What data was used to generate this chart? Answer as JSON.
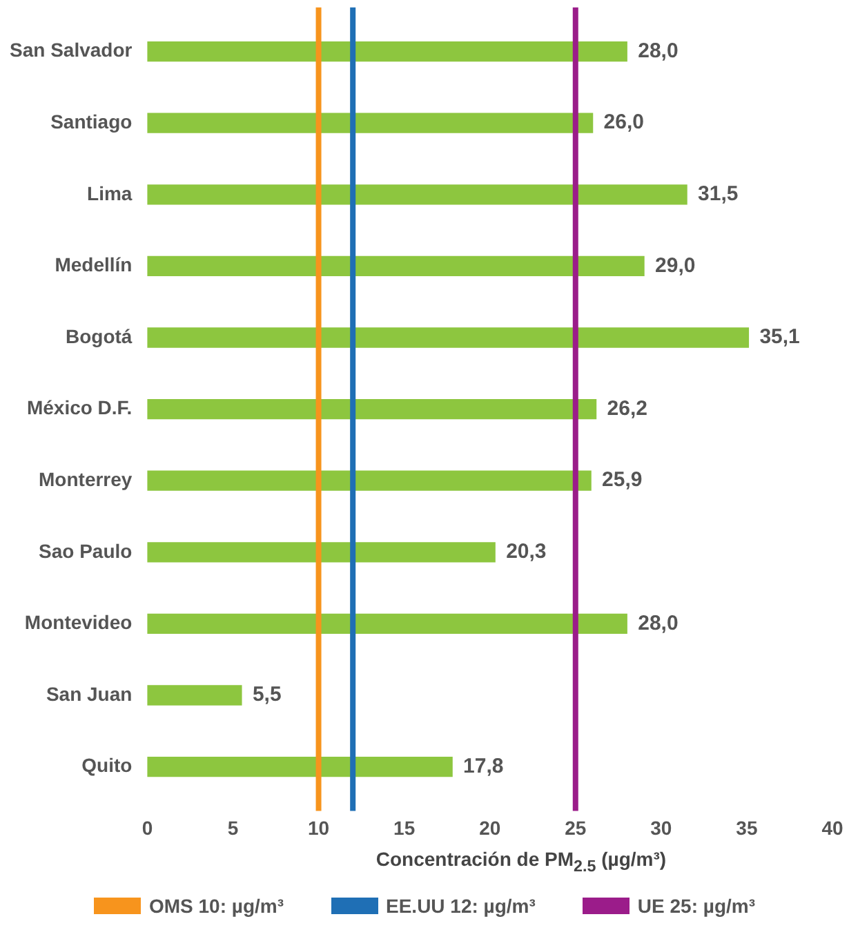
{
  "chart_data": {
    "type": "bar",
    "orientation": "horizontal",
    "xlabel": "Concentración de PM$_{2.5}$ (µg/m³)",
    "categories": [
      "San Salvador",
      "Santiago",
      "Lima",
      "Medellín",
      "Bogotá",
      "México D.F.",
      "Monterrey",
      "Sao Paulo",
      "Montevideo",
      "San Juan",
      "Quito"
    ],
    "values": [
      28.0,
      26.0,
      31.5,
      29.0,
      35.1,
      26.2,
      25.9,
      20.3,
      28.0,
      5.5,
      17.8
    ],
    "value_labels": [
      "28,0",
      "26,0",
      "31,5",
      "29,0",
      "35,1",
      "26,2",
      "25,9",
      "20,3",
      "28,0",
      "5,5",
      "17,8"
    ],
    "color": "#8dc63f",
    "xlim": [
      0,
      40
    ],
    "xticks": [
      0,
      5,
      10,
      15,
      20,
      25,
      30,
      35,
      40
    ],
    "ref_lines": [
      {
        "axis": "x",
        "value": 10,
        "label": "OMS 10: µg/m³",
        "color": "#f7941d"
      },
      {
        "axis": "x",
        "value": 12,
        "label": "EE.UU 12: µg/m³",
        "color": "#1f6fb5"
      },
      {
        "axis": "x",
        "value": 25,
        "label": "UE 25: µg/m³",
        "color": "#9b1c8a"
      }
    ],
    "grid": false,
    "legend": "bottom"
  }
}
